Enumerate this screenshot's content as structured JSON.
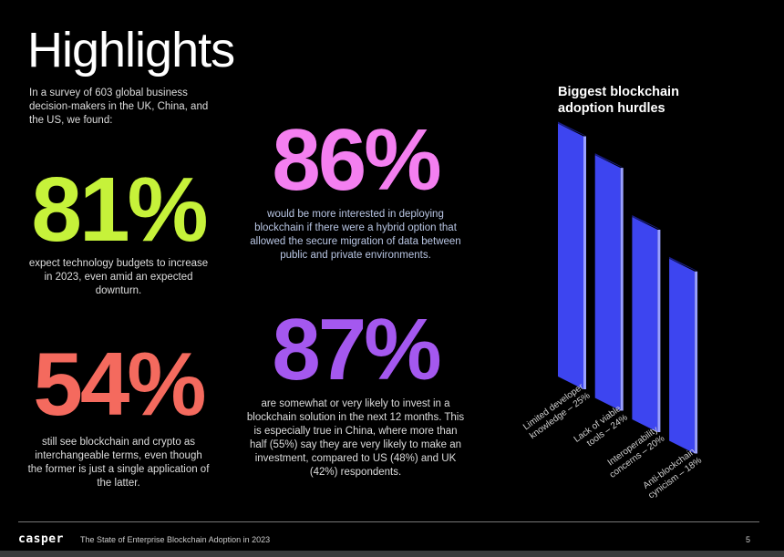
{
  "title": "Highlights",
  "intro": "In a survey of 603 global business decision-makers in the UK, China, and the US, we found:",
  "stats": [
    {
      "value": "81%",
      "color": "#c6f23a",
      "text": "expect technology budgets to increase in 2023, even amid an expected downturn."
    },
    {
      "value": "86%",
      "color": "#f47ff0",
      "text": "would be more interested in deploying blockchain if there were a hybrid option that allowed the secure migration of data between public and private environments."
    },
    {
      "value": "54%",
      "color": "#f46a5e",
      "text": "still see blockchain and crypto as interchangeable terms, even though the former is just a single application of the latter."
    },
    {
      "value": "87%",
      "color": "#a458ef",
      "text": "are somewhat or very likely to invest in a blockchain solution in the next 12 months. This is especially true in China, where more than half (55%) say they are very likely to make an investment, compared to US (48%) and UK (42%) respondents."
    }
  ],
  "chart_data": {
    "type": "bar",
    "title": "Biggest blockchain adoption hurdles",
    "categories": [
      "Limited developer knowledge",
      "Lack of viable tools",
      "Interoperability concerns",
      "Anti-blockchain cynicism"
    ],
    "labels": [
      [
        "Limited developer",
        "knowledge – 25%"
      ],
      [
        "Lack of viable",
        "tools – 24%"
      ],
      [
        "Interoperability",
        "concerns – 20%"
      ],
      [
        "Anti-blockchain",
        "cynicism – 18%"
      ]
    ],
    "values": [
      25,
      24,
      20,
      18
    ],
    "unit": "%",
    "bar_color": "#3d45f0",
    "side_color": "#9aa0ff",
    "top_color": "#1a1f8a"
  },
  "footer": {
    "logo": "casper",
    "report": "The State of Enterprise Blockchain Adoption in 2023",
    "page": "5"
  }
}
